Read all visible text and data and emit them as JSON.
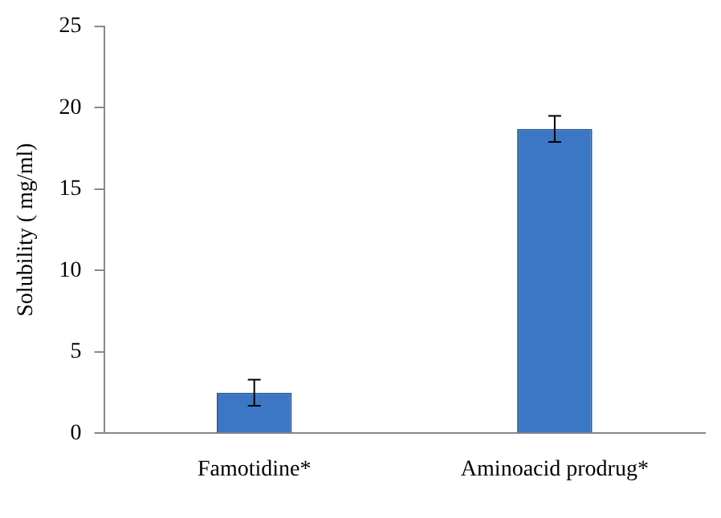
{
  "chart_data": {
    "type": "bar",
    "ylabel": "Solubility ( mg/ml)",
    "categories": [
      "Famotidine*",
      "Aminoacid prodrug*"
    ],
    "values": [
      2.5,
      18.7
    ],
    "errors": [
      0.8,
      0.8
    ],
    "color": "#3b77c4",
    "ylim": [
      0,
      25
    ],
    "yticks": [
      0,
      5,
      10,
      15,
      20,
      25
    ],
    "grid": false,
    "legend": false
  }
}
